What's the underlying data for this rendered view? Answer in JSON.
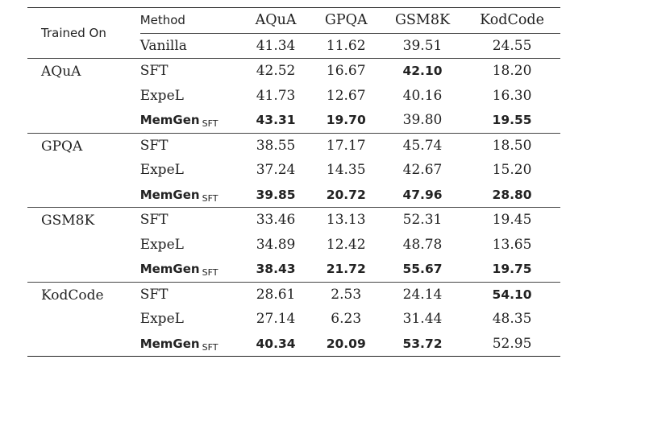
{
  "header": {
    "trained_on": "Trained On",
    "method": "Method",
    "datasets": [
      "AQuA",
      "GPQA",
      "GSM8K",
      "KodCode"
    ]
  },
  "vanilla": {
    "method": "Vanilla",
    "values": [
      "41.34",
      "11.62",
      "39.51",
      "24.55"
    ]
  },
  "groups": [
    {
      "trained_on": "AQuA",
      "rows": [
        {
          "method": "SFT",
          "sub": "",
          "values": [
            "42.52",
            "16.67",
            "42.10",
            "18.20"
          ],
          "bold": [
            false,
            false,
            true,
            false
          ]
        },
        {
          "method": "ExpeL",
          "sub": "",
          "values": [
            "41.73",
            "12.67",
            "40.16",
            "16.30"
          ],
          "bold": [
            false,
            false,
            false,
            false
          ]
        },
        {
          "method": "MemGen",
          "sub": "SFT",
          "values": [
            "43.31",
            "19.70",
            "39.80",
            "19.55"
          ],
          "bold": [
            true,
            true,
            false,
            true
          ]
        }
      ]
    },
    {
      "trained_on": "GPQA",
      "rows": [
        {
          "method": "SFT",
          "sub": "",
          "values": [
            "38.55",
            "17.17",
            "45.74",
            "18.50"
          ],
          "bold": [
            false,
            false,
            false,
            false
          ]
        },
        {
          "method": "ExpeL",
          "sub": "",
          "values": [
            "37.24",
            "14.35",
            "42.67",
            "15.20"
          ],
          "bold": [
            false,
            false,
            false,
            false
          ]
        },
        {
          "method": "MemGen",
          "sub": "SFT",
          "values": [
            "39.85",
            "20.72",
            "47.96",
            "28.80"
          ],
          "bold": [
            true,
            true,
            true,
            true
          ]
        }
      ]
    },
    {
      "trained_on": "GSM8K",
      "rows": [
        {
          "method": "SFT",
          "sub": "",
          "values": [
            "33.46",
            "13.13",
            "52.31",
            "19.45"
          ],
          "bold": [
            false,
            false,
            false,
            false
          ]
        },
        {
          "method": "ExpeL",
          "sub": "",
          "values": [
            "34.89",
            "12.42",
            "48.78",
            "13.65"
          ],
          "bold": [
            false,
            false,
            false,
            false
          ]
        },
        {
          "method": "MemGen",
          "sub": "SFT",
          "values": [
            "38.43",
            "21.72",
            "55.67",
            "19.75"
          ],
          "bold": [
            true,
            true,
            true,
            true
          ]
        }
      ]
    },
    {
      "trained_on": "KodCode",
      "rows": [
        {
          "method": "SFT",
          "sub": "",
          "values": [
            "28.61",
            "2.53",
            "24.14",
            "54.10"
          ],
          "bold": [
            false,
            false,
            false,
            true
          ]
        },
        {
          "method": "ExpeL",
          "sub": "",
          "values": [
            "27.14",
            "6.23",
            "31.44",
            "48.35"
          ],
          "bold": [
            false,
            false,
            false,
            false
          ]
        },
        {
          "method": "MemGen",
          "sub": "SFT",
          "values": [
            "40.34",
            "20.09",
            "53.72",
            "52.95"
          ],
          "bold": [
            true,
            true,
            true,
            false
          ]
        }
      ]
    }
  ]
}
